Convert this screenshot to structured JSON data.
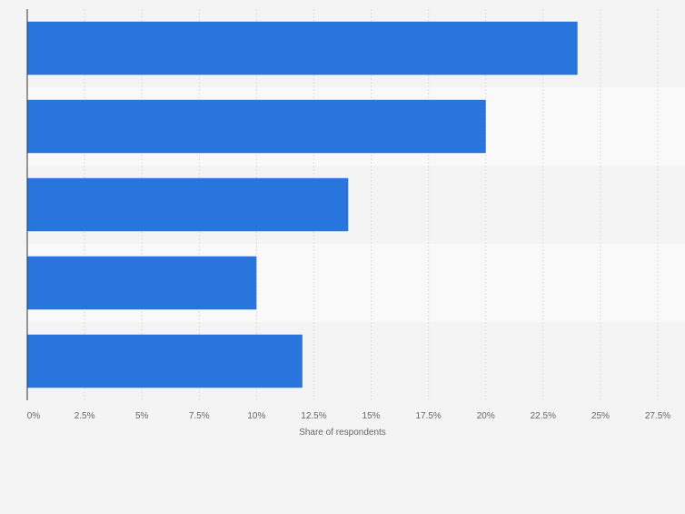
{
  "chart_data": {
    "type": "bar",
    "orientation": "horizontal",
    "categories": [
      "",
      "",
      "",
      "",
      ""
    ],
    "values": [
      24,
      20,
      14,
      10,
      12
    ],
    "xlabel": "Share of respondents",
    "ylabel": "",
    "xlim": [
      0,
      27.5
    ],
    "ticks": [
      0,
      2.5,
      5,
      7.5,
      10,
      12.5,
      15,
      17.5,
      20,
      22.5,
      25,
      27.5
    ],
    "tick_labels": [
      "0%",
      "2.5%",
      "5%",
      "7.5%",
      "10%",
      "12.5%",
      "15%",
      "17.5%",
      "20%",
      "22.5%",
      "25%",
      "27.5%"
    ],
    "grid": "vertical",
    "legend": "none",
    "colors": {
      "bar": "#2876dd",
      "background": "#f4f4f4",
      "band_alt": "#f9f9f9",
      "grid": "#dedede",
      "axis": "#333333",
      "tick_text": "#666666"
    }
  }
}
